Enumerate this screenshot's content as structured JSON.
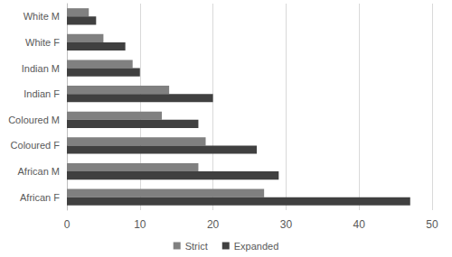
{
  "chart_data": {
    "type": "bar",
    "orientation": "horizontal",
    "categories": [
      "African F",
      "African M",
      "Coloured F",
      "Coloured M",
      "Indian F",
      "Indian M",
      "White F",
      "White M"
    ],
    "series": [
      {
        "name": "Strict",
        "color": "#808080",
        "values": [
          27,
          18,
          19,
          13,
          14,
          9,
          5,
          3
        ]
      },
      {
        "name": "Expanded",
        "color": "#404040",
        "values": [
          47,
          29,
          26,
          18,
          20,
          10,
          8,
          4
        ]
      }
    ],
    "xlim": [
      0,
      50
    ],
    "xticks": [
      0,
      10,
      20,
      30,
      40,
      50
    ],
    "grid": true,
    "legend": "bottom"
  }
}
